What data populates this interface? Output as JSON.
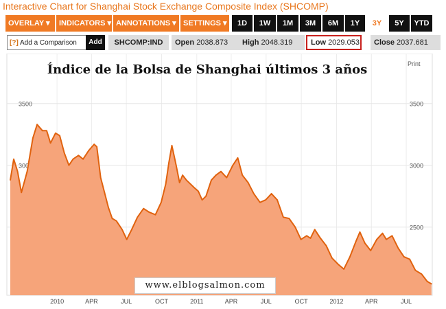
{
  "page_title": "Interactive Chart for Shanghai Stock Exchange Composite Index (SHCOMP)",
  "toolbar": {
    "menus": [
      "OVERLAY ▾",
      "INDICATORS ▾",
      "ANNOTATIONS ▾",
      "SETTINGS ▾"
    ],
    "ranges": [
      "1D",
      "1W",
      "1M",
      "3M",
      "6M",
      "1Y",
      "3Y",
      "5Y",
      "YTD"
    ],
    "active_range": "3Y"
  },
  "quote_bar": {
    "compare_help": "[?]",
    "compare_label": "Add a Comparison",
    "add_label": "Add",
    "symbol": "SHCOMP:IND",
    "open_label": "Open",
    "open_value": "2038.873",
    "high_label": "High",
    "high_value": "2048.319",
    "low_label": "Low",
    "low_value": "2029.053",
    "close_label": "Close",
    "close_value": "2037.681"
  },
  "print_label": "Print",
  "watermark": "www.elblogsalmon.com",
  "colors": {
    "accent": "#f07a24",
    "area_fill": "#f6a47a",
    "area_line": "#e0620e",
    "low_box_border": "#c8201c"
  },
  "chart_data": {
    "type": "area",
    "title": "Índice de la Bolsa de Shanghai últimos 3 años",
    "xlabel": "",
    "ylabel": "",
    "x_ticks": [
      "2010",
      "APR",
      "JUL",
      "OCT",
      "2011",
      "APR",
      "JUL",
      "OCT",
      "2012",
      "APR",
      "JUL"
    ],
    "y_ticks": [
      2500,
      3000,
      3500
    ],
    "ylim": [
      2000,
      3920
    ],
    "grid": true,
    "series": [
      {
        "x": [
          "2009-09-01",
          "2009-09-10",
          "2009-09-20",
          "2009-09-30",
          "2009-10-15",
          "2009-10-30",
          "2009-11-10",
          "2009-11-24",
          "2009-12-05",
          "2009-12-15",
          "2009-12-28",
          "2010-01-08",
          "2010-01-20",
          "2010-02-01",
          "2010-02-12",
          "2010-02-26",
          "2010-03-10",
          "2010-03-25",
          "2010-04-08",
          "2010-04-15",
          "2010-04-25",
          "2010-05-05",
          "2010-05-15",
          "2010-05-25",
          "2010-06-05",
          "2010-06-20",
          "2010-07-02",
          "2010-07-15",
          "2010-07-30",
          "2010-08-15",
          "2010-08-30",
          "2010-09-15",
          "2010-09-30",
          "2010-10-12",
          "2010-10-20",
          "2010-10-28",
          "2010-11-08",
          "2010-11-17",
          "2010-11-25",
          "2010-12-05",
          "2010-12-15",
          "2010-12-25",
          "2011-01-05",
          "2011-01-15",
          "2011-01-25",
          "2011-02-08",
          "2011-02-20",
          "2011-03-05",
          "2011-03-20",
          "2011-04-05",
          "2011-04-18",
          "2011-04-30",
          "2011-05-15",
          "2011-05-30",
          "2011-06-15",
          "2011-06-30",
          "2011-07-15",
          "2011-07-30",
          "2011-08-15",
          "2011-08-30",
          "2011-09-15",
          "2011-09-30",
          "2011-10-15",
          "2011-10-25",
          "2011-11-05",
          "2011-11-20",
          "2011-12-05",
          "2011-12-20",
          "2012-01-05",
          "2012-01-20",
          "2012-02-05",
          "2012-02-20",
          "2012-03-02",
          "2012-03-15",
          "2012-03-30",
          "2012-04-15",
          "2012-04-30",
          "2012-05-10",
          "2012-05-25",
          "2012-06-10",
          "2012-06-25",
          "2012-07-10",
          "2012-07-25",
          "2012-08-10",
          "2012-08-25",
          "2012-09-05"
        ],
        "values": [
          2880,
          3050,
          2950,
          2780,
          2950,
          3220,
          3330,
          3280,
          3280,
          3180,
          3260,
          3240,
          3100,
          3000,
          3050,
          3080,
          3050,
          3120,
          3170,
          3150,
          2900,
          2780,
          2660,
          2570,
          2550,
          2480,
          2400,
          2480,
          2580,
          2650,
          2620,
          2600,
          2700,
          2850,
          3020,
          3160,
          3000,
          2860,
          2920,
          2880,
          2850,
          2820,
          2790,
          2720,
          2750,
          2880,
          2920,
          2950,
          2900,
          3000,
          3060,
          2920,
          2860,
          2770,
          2700,
          2720,
          2770,
          2720,
          2580,
          2570,
          2500,
          2400,
          2430,
          2410,
          2480,
          2410,
          2350,
          2250,
          2200,
          2160,
          2260,
          2380,
          2460,
          2370,
          2310,
          2400,
          2450,
          2400,
          2430,
          2330,
          2260,
          2240,
          2150,
          2120,
          2060,
          2040
        ]
      }
    ]
  }
}
